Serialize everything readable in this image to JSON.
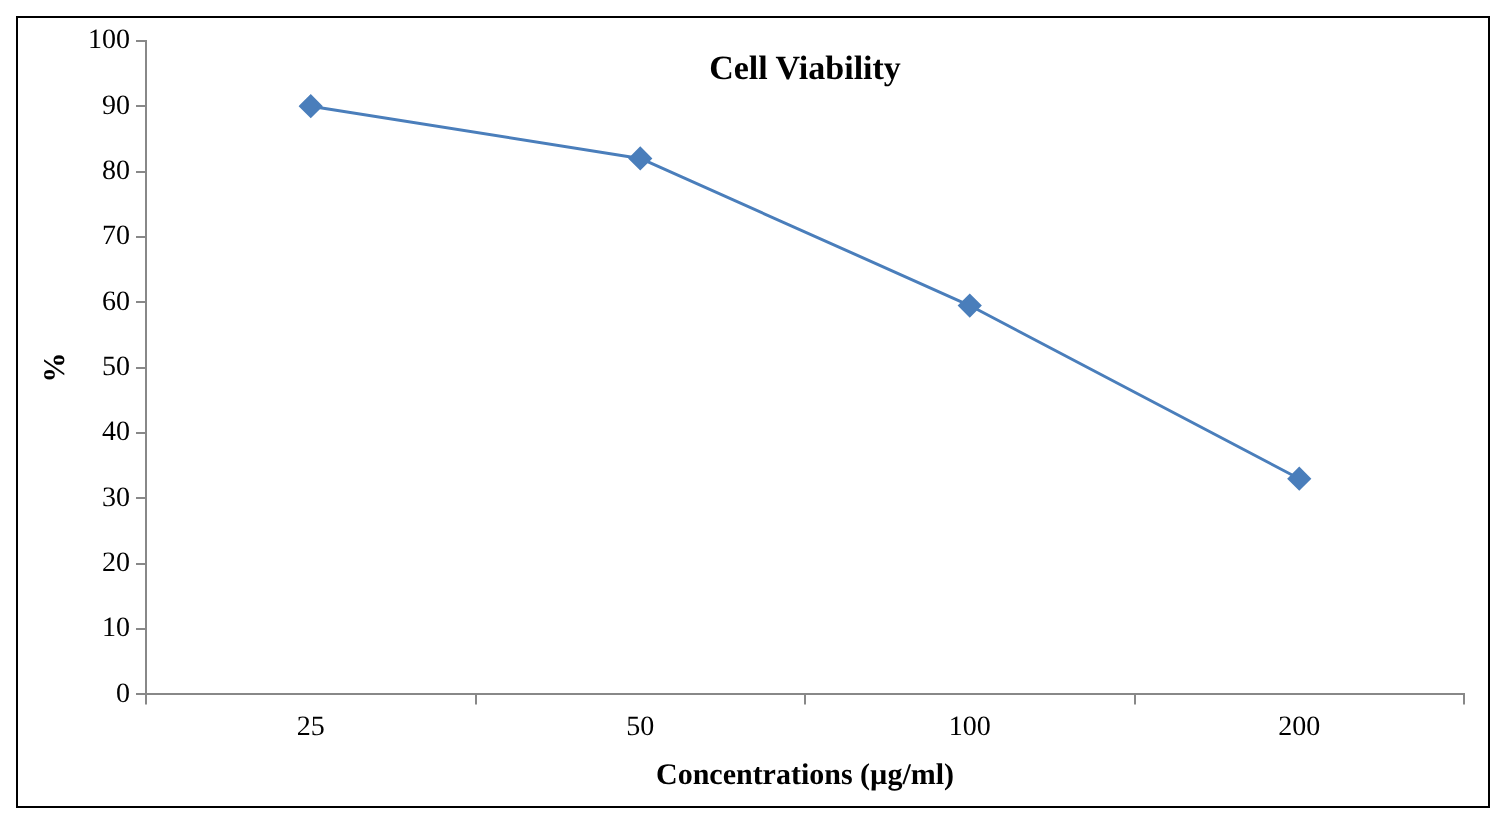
{
  "chart_data": {
    "type": "line",
    "title": "Cell Viability",
    "xlabel": "Concentrations (µg/ml)",
    "ylabel": "%",
    "categories": [
      "25",
      "50",
      "100",
      "200"
    ],
    "series": [
      {
        "color": "#4a7ebb",
        "values": [
          90,
          82,
          59.5,
          33
        ]
      }
    ],
    "ylim": [
      0,
      100
    ],
    "yticks": [
      0,
      10,
      20,
      30,
      40,
      50,
      60,
      70,
      80,
      90,
      100
    ],
    "grid": false,
    "legend": false,
    "marker": "diamond",
    "line_style": "solid"
  }
}
